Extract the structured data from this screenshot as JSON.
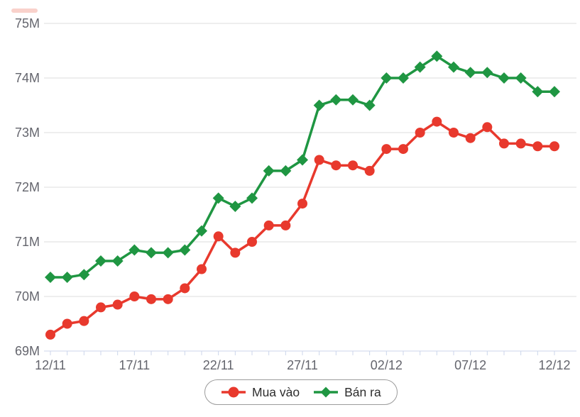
{
  "chart_data": {
    "type": "line",
    "title": "",
    "xlabel": "",
    "ylabel": "",
    "n_points": 31,
    "x_tick_labels": [
      "12/11",
      "17/11",
      "22/11",
      "27/11",
      "02/12",
      "07/12",
      "12/12"
    ],
    "x_tick_indices": [
      0,
      5,
      10,
      15,
      20,
      25,
      30
    ],
    "y_ticks": [
      "69M",
      "70M",
      "71M",
      "72M",
      "73M",
      "74M",
      "75M"
    ],
    "y_tick_values": [
      69,
      70,
      71,
      72,
      73,
      74,
      75
    ],
    "ylim": [
      69,
      75
    ],
    "unit": "M",
    "grid": "horizontal",
    "legend_position": "bottom-center",
    "series": [
      {
        "name": "Mua vào",
        "marker": "circle",
        "color": "#e8392d",
        "values": [
          69.3,
          69.5,
          69.55,
          69.8,
          69.85,
          70.0,
          69.95,
          69.95,
          70.15,
          70.5,
          71.1,
          70.8,
          71.0,
          71.3,
          71.3,
          71.7,
          72.5,
          72.4,
          72.4,
          72.3,
          72.7,
          72.7,
          73.0,
          73.2,
          73.0,
          72.9,
          73.1,
          72.8,
          72.8,
          72.75,
          72.75
        ]
      },
      {
        "name": "Bán ra",
        "marker": "diamond",
        "color": "#1f9642",
        "values": [
          70.35,
          70.35,
          70.4,
          70.65,
          70.65,
          70.85,
          70.8,
          70.8,
          70.85,
          71.2,
          71.8,
          71.65,
          71.8,
          72.3,
          72.3,
          72.5,
          73.5,
          73.6,
          73.6,
          73.5,
          74.0,
          74.0,
          74.2,
          74.4,
          74.2,
          74.1,
          74.1,
          74.0,
          74.0,
          73.75,
          73.75
        ]
      }
    ]
  },
  "colors": {
    "background": "#ffffff",
    "gridline": "#dcdcdc",
    "axis_line": "#ccd6eb",
    "tick_label": "#64656d",
    "legend_border": "#9b9b9b",
    "legend_text": "#2d2d2d"
  }
}
